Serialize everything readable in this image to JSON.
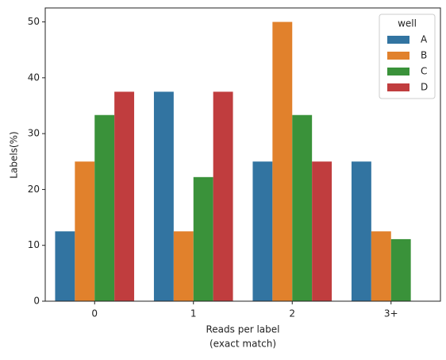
{
  "chart_data": {
    "type": "bar",
    "xlabel": [
      "Reads per label",
      "(exact match)"
    ],
    "ylabel": "Labels(%)",
    "categories": [
      "0",
      "1",
      "2",
      "3+"
    ],
    "series": [
      {
        "name": "A",
        "color": "#3274a1",
        "values": [
          12.5,
          37.5,
          25,
          25
        ]
      },
      {
        "name": "B",
        "color": "#e1812c",
        "values": [
          25,
          12.5,
          50,
          12.5
        ]
      },
      {
        "name": "C",
        "color": "#3a923a",
        "values": [
          33.33,
          22.22,
          33.33,
          11.11
        ]
      },
      {
        "name": "D",
        "color": "#c03d3e",
        "values": [
          37.5,
          37.5,
          25,
          null
        ]
      }
    ],
    "legend_title": "well",
    "legend_position": "upper right",
    "ylim": [
      0,
      52.5
    ],
    "yticks": [
      0,
      10,
      20,
      30,
      40,
      50
    ],
    "grid": false
  }
}
